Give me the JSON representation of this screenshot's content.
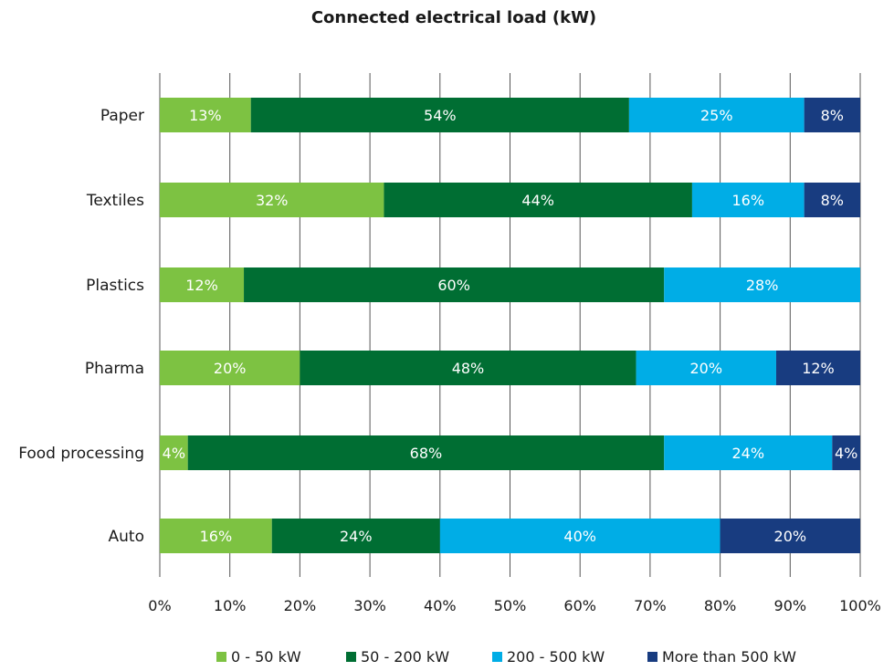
{
  "chart_data": {
    "type": "bar",
    "orientation": "horizontal",
    "stacked": true,
    "title": "Connected electrical load (kW)",
    "categories": [
      "Paper",
      "Textiles",
      "Plastics",
      "Pharma",
      "Food processing",
      "Auto"
    ],
    "series": [
      {
        "name": "0 - 50 kW",
        "color": "#7dc242",
        "values": [
          13,
          32,
          12,
          20,
          4,
          16
        ],
        "labels": [
          "13%",
          "32%",
          "12%",
          "20%",
          "4%",
          "16%"
        ]
      },
      {
        "name": "50 - 200 kW",
        "color": "#006e33",
        "values": [
          54,
          44,
          60,
          48,
          68,
          24
        ],
        "labels": [
          "54%",
          "44%",
          "60%",
          "48%",
          "68%",
          "24%"
        ]
      },
      {
        "name": "200 - 500 kW",
        "color": "#00ade6",
        "values": [
          25,
          16,
          28,
          20,
          24,
          40
        ],
        "labels": [
          "25%",
          "16%",
          "28%",
          "20%",
          "24%",
          "40%"
        ]
      },
      {
        "name": "More than 500 kW",
        "color": "#183c80",
        "values": [
          8,
          8,
          0,
          12,
          4,
          20
        ],
        "labels": [
          "8%",
          "8%",
          "",
          "12%",
          "4%",
          "20%"
        ]
      }
    ],
    "xlim": [
      0,
      100
    ],
    "xticks": [
      0,
      10,
      20,
      30,
      40,
      50,
      60,
      70,
      80,
      90,
      100
    ],
    "xtick_labels": [
      "0%",
      "10%",
      "20%",
      "30%",
      "40%",
      "50%",
      "60%",
      "70%",
      "80%",
      "90%",
      "100%"
    ],
    "grid": "vertical",
    "legend": "bottom"
  }
}
